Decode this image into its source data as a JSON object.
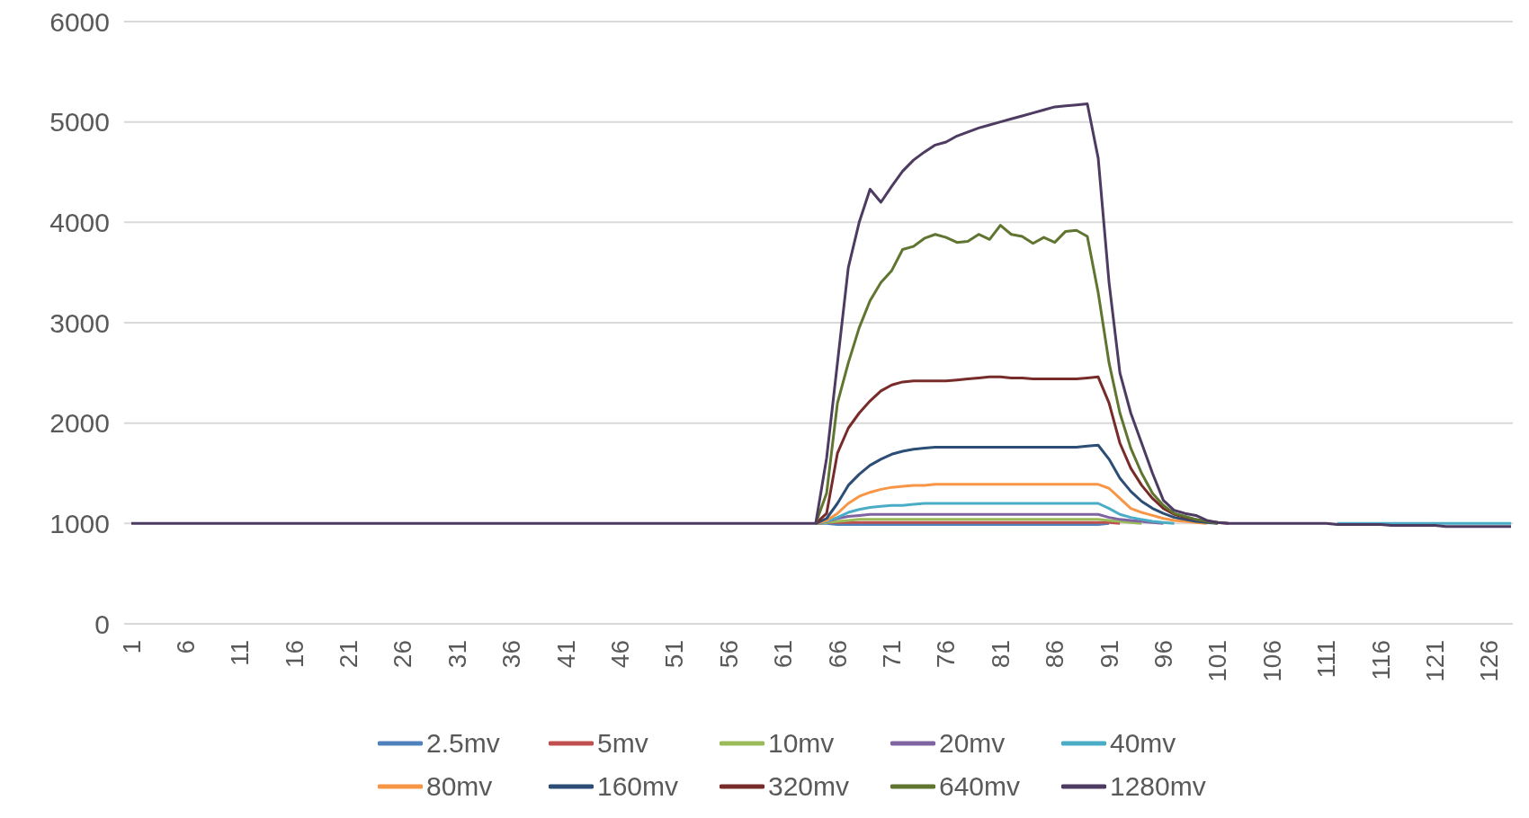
{
  "chart_data": {
    "type": "line",
    "categories": [
      "1",
      null,
      null,
      null,
      null,
      "6",
      null,
      null,
      null,
      null,
      "11",
      null,
      null,
      null,
      null,
      "16",
      null,
      null,
      null,
      null,
      "21",
      null,
      null,
      null,
      null,
      "26",
      null,
      null,
      null,
      null,
      "31",
      null,
      null,
      null,
      null,
      "36",
      null,
      null,
      null,
      null,
      "41",
      null,
      null,
      null,
      null,
      "46",
      null,
      null,
      null,
      null,
      "51",
      null,
      null,
      null,
      null,
      "56",
      null,
      null,
      null,
      null,
      "61",
      null,
      null,
      null,
      null,
      "66",
      null,
      null,
      null,
      null,
      "71",
      null,
      null,
      null,
      null,
      "76",
      null,
      null,
      null,
      null,
      "81",
      null,
      null,
      null,
      null,
      "86",
      null,
      null,
      null,
      null,
      "91",
      null,
      null,
      null,
      null,
      "96",
      null,
      null,
      null,
      null,
      "101",
      null,
      null,
      null,
      null,
      "106",
      null,
      null,
      null,
      null,
      "111",
      null,
      null,
      null,
      null,
      "116",
      null,
      null,
      null,
      null,
      "121",
      null,
      null,
      null,
      null,
      "126",
      null,
      null
    ],
    "ylim": [
      0,
      6000
    ],
    "yticks": [
      0,
      1000,
      2000,
      3000,
      4000,
      5000,
      6000
    ],
    "grid": "y",
    "legend": "bottom",
    "marker": "none",
    "line_style": "solid",
    "series": [
      {
        "name": "2.5mv",
        "color": "#4f81bd",
        "values": [
          null,
          null,
          null,
          null,
          null,
          null,
          null,
          null,
          null,
          null,
          null,
          null,
          null,
          null,
          null,
          null,
          null,
          null,
          null,
          null,
          null,
          null,
          null,
          null,
          null,
          null,
          null,
          null,
          null,
          null,
          null,
          null,
          null,
          null,
          null,
          null,
          null,
          null,
          null,
          null,
          null,
          null,
          null,
          null,
          null,
          null,
          null,
          null,
          null,
          null,
          null,
          null,
          null,
          null,
          null,
          null,
          null,
          null,
          null,
          null,
          null,
          null,
          null,
          1000,
          1000,
          990,
          990,
          990,
          990,
          990,
          990,
          990,
          990,
          990,
          990,
          990,
          990,
          990,
          990,
          990,
          990,
          990,
          990,
          990,
          990,
          990,
          990,
          990,
          990,
          990,
          1000,
          null,
          null,
          null,
          null,
          null,
          null,
          null,
          null,
          null,
          null,
          null,
          null,
          null,
          null,
          null,
          null,
          null,
          null,
          null,
          null,
          null,
          null,
          null,
          null,
          null,
          null,
          null,
          null,
          null,
          null,
          null,
          null,
          null,
          null,
          null,
          null,
          null
        ]
      },
      {
        "name": "5mv",
        "color": "#c0504d",
        "values": [
          null,
          null,
          null,
          null,
          null,
          null,
          null,
          null,
          null,
          null,
          null,
          null,
          null,
          null,
          null,
          null,
          null,
          null,
          null,
          null,
          null,
          null,
          null,
          null,
          null,
          null,
          null,
          null,
          null,
          null,
          null,
          null,
          null,
          null,
          null,
          null,
          null,
          null,
          null,
          null,
          null,
          null,
          null,
          null,
          null,
          null,
          null,
          null,
          null,
          null,
          null,
          null,
          null,
          null,
          null,
          null,
          null,
          null,
          null,
          null,
          null,
          null,
          null,
          1000,
          1010,
          1010,
          1010,
          1010,
          1010,
          1010,
          1010,
          1010,
          1010,
          1010,
          1010,
          1010,
          1010,
          1010,
          1010,
          1010,
          1010,
          1010,
          1010,
          1010,
          1010,
          1010,
          1010,
          1010,
          1010,
          1010,
          1010,
          1000,
          null,
          null,
          null,
          null,
          null,
          null,
          null,
          null,
          null,
          null,
          null,
          null,
          null,
          null,
          null,
          null,
          null,
          null,
          null,
          null,
          null,
          null,
          null,
          null,
          null,
          null,
          null,
          null,
          null,
          null,
          null,
          null,
          null,
          null,
          null,
          null
        ]
      },
      {
        "name": "10mv",
        "color": "#9bbb59",
        "values": [
          null,
          null,
          null,
          null,
          null,
          null,
          null,
          null,
          null,
          null,
          null,
          null,
          null,
          null,
          null,
          null,
          null,
          null,
          null,
          null,
          null,
          null,
          null,
          null,
          null,
          null,
          null,
          null,
          null,
          null,
          null,
          null,
          null,
          null,
          null,
          null,
          null,
          null,
          null,
          null,
          null,
          null,
          null,
          null,
          null,
          null,
          null,
          null,
          null,
          null,
          null,
          null,
          null,
          null,
          null,
          null,
          null,
          null,
          null,
          null,
          null,
          null,
          null,
          1000,
          1010,
          1020,
          1030,
          1040,
          1040,
          1040,
          1040,
          1040,
          1040,
          1040,
          1040,
          1040,
          1040,
          1040,
          1040,
          1040,
          1040,
          1040,
          1040,
          1040,
          1040,
          1040,
          1040,
          1040,
          1040,
          1040,
          1030,
          1020,
          1010,
          1000,
          null,
          null,
          null,
          null,
          null,
          null,
          null,
          null,
          null,
          null,
          null,
          null,
          null,
          null,
          null,
          null,
          null,
          null,
          null,
          null,
          null,
          null,
          null,
          null,
          null,
          null,
          null,
          null,
          null,
          null,
          null,
          null,
          null,
          null
        ]
      },
      {
        "name": "20mv",
        "color": "#8064a2",
        "values": [
          null,
          null,
          null,
          null,
          null,
          null,
          null,
          null,
          null,
          null,
          null,
          null,
          null,
          null,
          null,
          null,
          null,
          null,
          null,
          null,
          null,
          null,
          null,
          null,
          null,
          null,
          null,
          null,
          null,
          null,
          null,
          null,
          null,
          null,
          null,
          null,
          null,
          null,
          null,
          null,
          null,
          null,
          null,
          null,
          null,
          null,
          null,
          null,
          null,
          null,
          null,
          null,
          null,
          null,
          null,
          null,
          null,
          null,
          null,
          null,
          null,
          null,
          null,
          1000,
          1020,
          1050,
          1070,
          1080,
          1090,
          1090,
          1090,
          1090,
          1090,
          1090,
          1090,
          1090,
          1090,
          1090,
          1090,
          1090,
          1090,
          1090,
          1090,
          1090,
          1090,
          1090,
          1090,
          1090,
          1090,
          1090,
          1060,
          1040,
          1030,
          1020,
          1010,
          1000,
          null,
          null,
          null,
          null,
          null,
          null,
          null,
          null,
          null,
          null,
          null,
          null,
          null,
          null,
          null,
          null,
          null,
          null,
          null,
          null,
          null,
          null,
          null,
          null,
          null,
          null,
          null,
          null,
          null,
          null,
          null,
          null
        ]
      },
      {
        "name": "40mv",
        "color": "#4bacc6",
        "values": [
          null,
          null,
          null,
          null,
          null,
          null,
          null,
          null,
          null,
          null,
          null,
          null,
          null,
          null,
          null,
          null,
          null,
          null,
          null,
          null,
          null,
          null,
          null,
          null,
          null,
          null,
          null,
          null,
          null,
          null,
          null,
          null,
          null,
          null,
          null,
          null,
          null,
          null,
          null,
          null,
          null,
          null,
          null,
          null,
          null,
          null,
          null,
          null,
          null,
          null,
          null,
          null,
          null,
          null,
          null,
          null,
          null,
          null,
          null,
          null,
          null,
          null,
          null,
          1000,
          1020,
          1060,
          1110,
          1140,
          1160,
          1170,
          1180,
          1180,
          1190,
          1200,
          1200,
          1200,
          1200,
          1200,
          1200,
          1200,
          1200,
          1200,
          1200,
          1200,
          1200,
          1200,
          1200,
          1200,
          1200,
          1200,
          1150,
          1090,
          1060,
          1040,
          1020,
          1010,
          1000,
          null,
          null,
          null,
          null,
          null,
          null,
          null,
          null,
          null,
          null,
          null,
          null,
          null,
          null,
          1000,
          1000,
          1000,
          1000,
          1000,
          1000,
          1000,
          1000,
          1000,
          1000,
          1000,
          1000,
          1000,
          1000,
          1000,
          1000,
          1000
        ]
      },
      {
        "name": "80mv",
        "color": "#f79646",
        "values": [
          null,
          null,
          null,
          null,
          null,
          null,
          null,
          null,
          null,
          null,
          null,
          null,
          null,
          null,
          null,
          null,
          null,
          null,
          null,
          null,
          null,
          null,
          null,
          null,
          null,
          null,
          null,
          null,
          null,
          null,
          null,
          null,
          null,
          null,
          null,
          null,
          null,
          null,
          null,
          null,
          null,
          null,
          null,
          null,
          null,
          null,
          null,
          null,
          null,
          null,
          null,
          null,
          null,
          null,
          null,
          null,
          null,
          null,
          null,
          null,
          null,
          null,
          null,
          1000,
          1030,
          1100,
          1200,
          1270,
          1310,
          1340,
          1360,
          1370,
          1380,
          1380,
          1390,
          1390,
          1390,
          1390,
          1390,
          1390,
          1390,
          1390,
          1390,
          1390,
          1390,
          1390,
          1390,
          1390,
          1390,
          1390,
          1350,
          1250,
          1150,
          1110,
          1080,
          1050,
          1030,
          1020,
          1010,
          1000,
          null,
          null,
          null,
          null,
          null,
          null,
          null,
          null,
          null,
          null,
          null,
          null,
          null,
          null,
          null,
          null,
          null,
          null,
          null,
          null,
          null,
          null,
          null,
          null,
          null,
          null,
          null,
          null
        ]
      },
      {
        "name": "160mv",
        "color": "#2c4d75",
        "values": [
          null,
          null,
          null,
          null,
          null,
          null,
          null,
          null,
          null,
          null,
          null,
          null,
          null,
          null,
          null,
          null,
          null,
          null,
          null,
          null,
          null,
          null,
          null,
          null,
          null,
          null,
          null,
          null,
          null,
          null,
          null,
          null,
          null,
          null,
          null,
          null,
          null,
          null,
          null,
          null,
          null,
          null,
          null,
          null,
          null,
          null,
          null,
          null,
          null,
          null,
          null,
          null,
          null,
          null,
          null,
          null,
          null,
          null,
          null,
          null,
          null,
          null,
          null,
          1000,
          1050,
          1200,
          1380,
          1490,
          1580,
          1640,
          1690,
          1720,
          1740,
          1750,
          1760,
          1760,
          1760,
          1760,
          1760,
          1760,
          1760,
          1760,
          1760,
          1760,
          1760,
          1760,
          1760,
          1760,
          1770,
          1780,
          1640,
          1450,
          1320,
          1220,
          1150,
          1100,
          1060,
          1040,
          1020,
          1010,
          1000,
          null,
          null,
          null,
          null,
          null,
          null,
          null,
          null,
          null,
          null,
          null,
          null,
          null,
          null,
          null,
          null,
          null,
          null,
          null,
          null,
          null,
          null,
          null,
          null,
          null,
          null,
          null
        ]
      },
      {
        "name": "320mv",
        "color": "#772c2a",
        "values": [
          null,
          null,
          null,
          null,
          null,
          null,
          null,
          null,
          null,
          null,
          null,
          null,
          null,
          null,
          null,
          null,
          null,
          null,
          null,
          null,
          null,
          null,
          null,
          null,
          null,
          null,
          null,
          null,
          null,
          null,
          null,
          null,
          null,
          null,
          null,
          null,
          null,
          null,
          null,
          null,
          null,
          null,
          null,
          null,
          null,
          null,
          null,
          null,
          null,
          null,
          null,
          null,
          null,
          null,
          null,
          null,
          null,
          null,
          null,
          null,
          null,
          null,
          null,
          1000,
          1100,
          1700,
          1950,
          2100,
          2220,
          2320,
          2380,
          2410,
          2420,
          2420,
          2420,
          2420,
          2430,
          2440,
          2450,
          2460,
          2460,
          2450,
          2450,
          2440,
          2440,
          2440,
          2440,
          2440,
          2450,
          2460,
          2200,
          1800,
          1550,
          1380,
          1250,
          1150,
          1090,
          1060,
          1040,
          1020,
          1010,
          1000,
          null,
          null,
          null,
          null,
          null,
          null,
          null,
          null,
          null,
          null,
          null,
          null,
          null,
          null,
          null,
          null,
          null,
          null,
          null,
          null,
          null,
          null,
          null,
          null,
          null,
          null
        ]
      },
      {
        "name": "640mv",
        "color": "#5f7530",
        "values": [
          null,
          null,
          null,
          null,
          null,
          null,
          null,
          null,
          null,
          null,
          null,
          null,
          null,
          null,
          null,
          null,
          null,
          null,
          null,
          null,
          null,
          null,
          null,
          null,
          null,
          null,
          null,
          null,
          null,
          null,
          null,
          null,
          null,
          null,
          null,
          null,
          null,
          null,
          null,
          null,
          null,
          null,
          null,
          null,
          null,
          null,
          null,
          null,
          null,
          null,
          null,
          null,
          null,
          null,
          null,
          null,
          null,
          null,
          null,
          null,
          null,
          null,
          null,
          1000,
          1300,
          2200,
          2600,
          2950,
          3220,
          3400,
          3520,
          3730,
          3760,
          3840,
          3880,
          3850,
          3800,
          3810,
          3880,
          3830,
          3970,
          3880,
          3860,
          3790,
          3850,
          3800,
          3910,
          3920,
          3860,
          3300,
          2600,
          2100,
          1750,
          1500,
          1300,
          1180,
          1100,
          1070,
          1040,
          1020,
          1000,
          null,
          null,
          null,
          null,
          null,
          null,
          null,
          null,
          null,
          null,
          null,
          null,
          null,
          null,
          null,
          null,
          null,
          null,
          null,
          null,
          null,
          null,
          null,
          null,
          null,
          null,
          null
        ]
      },
      {
        "name": "1280mv",
        "color": "#4d3b62",
        "values": [
          1000,
          1000,
          1000,
          1000,
          1000,
          1000,
          1000,
          1000,
          1000,
          1000,
          1000,
          1000,
          1000,
          1000,
          1000,
          1000,
          1000,
          1000,
          1000,
          1000,
          1000,
          1000,
          1000,
          1000,
          1000,
          1000,
          1000,
          1000,
          1000,
          1000,
          1000,
          1000,
          1000,
          1000,
          1000,
          1000,
          1000,
          1000,
          1000,
          1000,
          1000,
          1000,
          1000,
          1000,
          1000,
          1000,
          1000,
          1000,
          1000,
          1000,
          1000,
          1000,
          1000,
          1000,
          1000,
          1000,
          1000,
          1000,
          1000,
          1000,
          1000,
          1000,
          1000,
          1000,
          1650,
          2600,
          3550,
          4000,
          4330,
          4200,
          4360,
          4510,
          4620,
          4700,
          4770,
          4800,
          4860,
          4900,
          4940,
          4970,
          5000,
          5030,
          5060,
          5090,
          5120,
          5150,
          5160,
          5170,
          5180,
          4640,
          3400,
          2500,
          2100,
          1800,
          1500,
          1230,
          1130,
          1100,
          1080,
          1030,
          1010,
          1000,
          1000,
          1000,
          1000,
          1000,
          1000,
          1000,
          1000,
          1000,
          1000,
          990,
          990,
          990,
          990,
          990,
          980,
          980,
          980,
          980,
          980,
          970,
          970,
          970,
          970,
          970,
          970,
          970
        ]
      }
    ]
  }
}
